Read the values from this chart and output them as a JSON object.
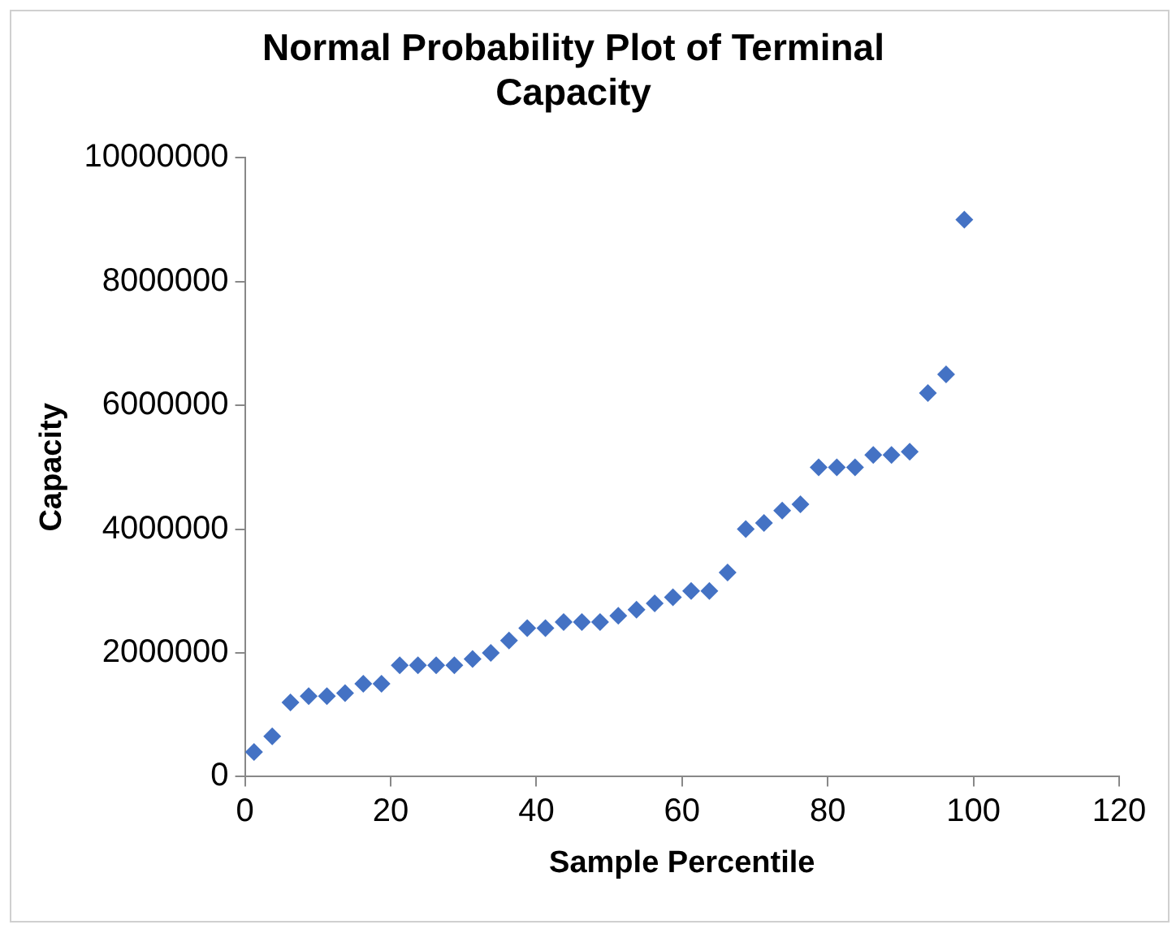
{
  "chart_data": {
    "type": "scatter",
    "title": "Normal Probability Plot of Terminal Capacity",
    "xlabel": "Sample Percentile",
    "ylabel": "Capacity",
    "x": [
      1.25,
      3.75,
      6.25,
      8.75,
      11.25,
      13.75,
      16.25,
      18.75,
      21.25,
      23.75,
      26.25,
      28.75,
      31.25,
      33.75,
      36.25,
      38.75,
      41.25,
      43.75,
      46.25,
      48.75,
      51.25,
      53.75,
      56.25,
      58.75,
      61.25,
      63.75,
      66.25,
      68.75,
      71.25,
      73.75,
      76.25,
      78.75,
      81.25,
      83.75,
      86.25,
      88.75,
      91.25,
      93.75,
      96.25,
      98.75
    ],
    "series": [
      {
        "color": "#4472c4",
        "values": [
          400000,
          650000,
          1200000,
          1300000,
          1300000,
          1350000,
          1500000,
          1500000,
          1800000,
          1800000,
          1800000,
          1800000,
          1900000,
          2000000,
          2200000,
          2400000,
          2400000,
          2500000,
          2500000,
          2500000,
          2600000,
          2700000,
          2800000,
          2900000,
          3000000,
          3000000,
          3300000,
          4000000,
          4100000,
          4300000,
          4400000,
          5000000,
          5000000,
          5000000,
          5200000,
          5200000,
          5250000,
          6200000,
          6500000,
          9000000
        ]
      }
    ],
    "xlim": [
      0,
      120
    ],
    "xticks": [
      0,
      20,
      40,
      60,
      80,
      100,
      120
    ],
    "ylim": [
      0,
      10000000
    ],
    "yticks": [
      0,
      2000000,
      4000000,
      6000000,
      8000000,
      10000000
    ],
    "grid": false,
    "legend": false,
    "marker": "diamond"
  }
}
